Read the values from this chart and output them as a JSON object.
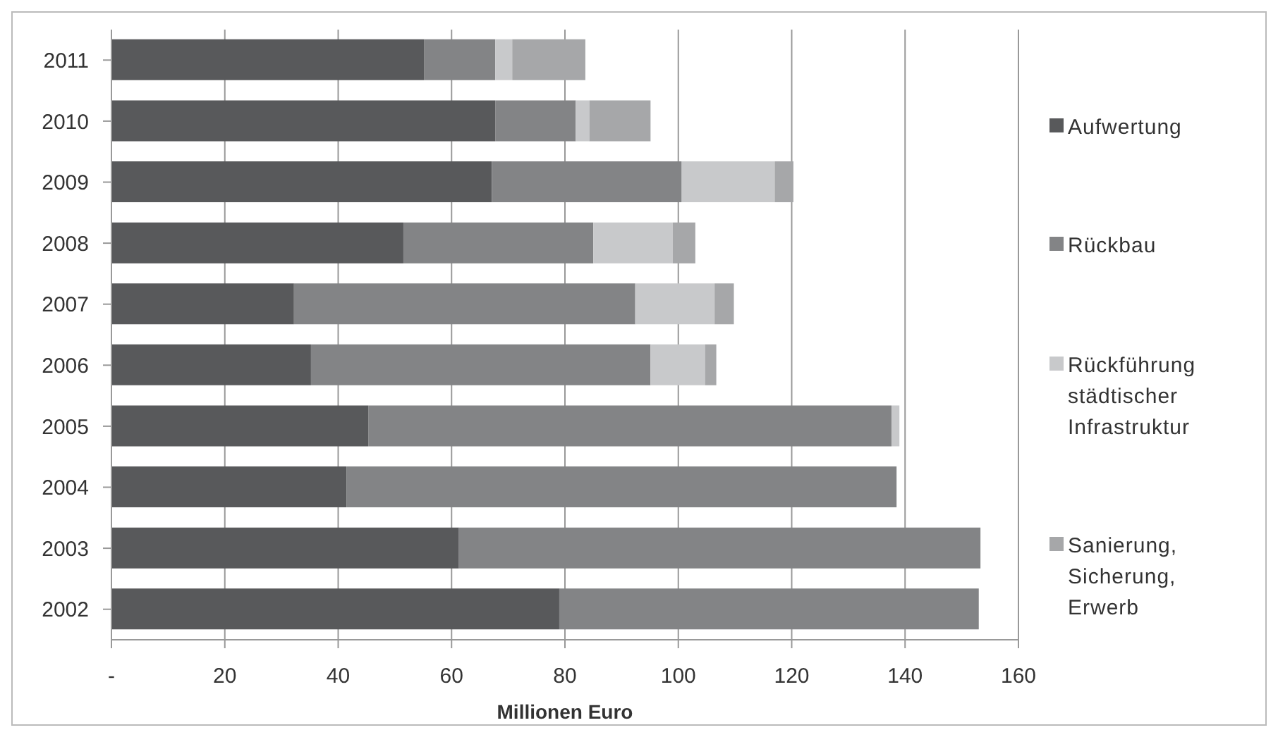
{
  "chart_data": {
    "type": "bar",
    "orientation": "horizontal",
    "stacked": true,
    "categories": [
      "2011",
      "2010",
      "2009",
      "2008",
      "2007",
      "2006",
      "2005",
      "2004",
      "2003",
      "2002"
    ],
    "series": [
      {
        "name": "Aufwertung",
        "color": "#58595b",
        "values": [
          55.2,
          67.7,
          67.1,
          51.5,
          32.2,
          35.2,
          45.3,
          41.5,
          61.3,
          79
        ]
      },
      {
        "name": "Rückbau",
        "color": "#838486",
        "values": [
          12.5,
          14.2,
          33.5,
          33.5,
          60.2,
          59.9,
          92.3,
          97,
          92,
          74
        ]
      },
      {
        "name": "Rückführung städtischer Infrastruktur",
        "color": "#c8c9cb",
        "values": [
          3,
          2.4,
          16.4,
          14,
          14,
          9.6,
          1.4,
          0,
          0,
          0
        ]
      },
      {
        "name": "Sanierung, Sicherung, Erwerb",
        "color": "#a6a7a9",
        "values": [
          12.9,
          10.8,
          3.3,
          4,
          3.4,
          2,
          0,
          0,
          0,
          0
        ]
      }
    ],
    "xlabel": "Millionen Euro",
    "xlim": [
      0,
      160
    ],
    "xticks": [
      {
        "value": 0,
        "label": "-"
      },
      20,
      40,
      60,
      80,
      100,
      120,
      140,
      160
    ],
    "grid": "x",
    "legend": "right"
  }
}
